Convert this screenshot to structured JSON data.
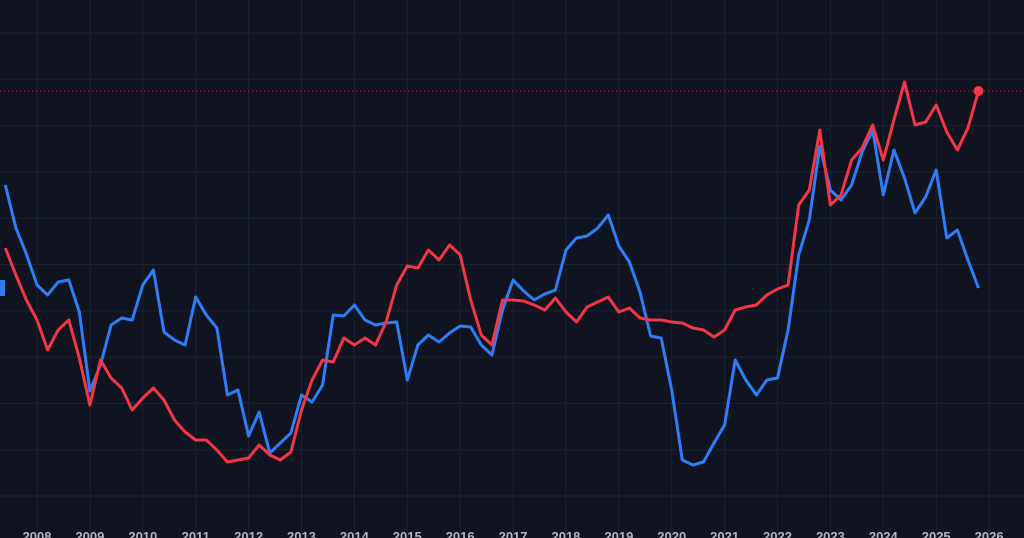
{
  "chart_data": {
    "type": "line",
    "x": [
      2007.4,
      2007.6,
      2007.8,
      2008.0,
      2008.2,
      2008.4,
      2008.6,
      2008.8,
      2009.0,
      2009.2,
      2009.4,
      2009.6,
      2009.8,
      2010.0,
      2010.2,
      2010.4,
      2010.6,
      2010.8,
      2011.0,
      2011.2,
      2011.4,
      2011.6,
      2011.8,
      2012.0,
      2012.2,
      2012.4,
      2012.6,
      2012.8,
      2013.0,
      2013.2,
      2013.4,
      2013.6,
      2013.8,
      2014.0,
      2014.2,
      2014.4,
      2014.6,
      2014.8,
      2015.0,
      2015.2,
      2015.4,
      2015.6,
      2015.8,
      2016.0,
      2016.2,
      2016.4,
      2016.6,
      2016.8,
      2017.0,
      2017.2,
      2017.4,
      2017.6,
      2017.8,
      2018.0,
      2018.2,
      2018.4,
      2018.6,
      2018.8,
      2019.0,
      2019.2,
      2019.4,
      2019.6,
      2019.8,
      2020.0,
      2020.2,
      2020.4,
      2020.6,
      2020.8,
      2021.0,
      2021.2,
      2021.4,
      2021.6,
      2021.8,
      2022.0,
      2022.2,
      2022.4,
      2022.6,
      2022.8,
      2023.0,
      2023.2,
      2023.4,
      2023.6,
      2023.8,
      2024.0,
      2024.2,
      2024.4,
      2024.6,
      2024.8,
      2025.0,
      2025.2,
      2025.4,
      2025.6,
      2025.8
    ],
    "series": [
      {
        "color": "#2f7df6",
        "values": [
          353,
          310,
          284,
          253,
          243,
          256,
          258,
          226,
          147,
          173,
          213,
          220,
          218,
          253,
          268,
          206,
          198,
          193,
          241,
          223,
          210,
          143,
          148,
          102,
          126,
          85,
          95,
          105,
          143,
          136,
          153,
          223,
          222,
          233,
          218,
          213,
          215,
          216,
          158,
          193,
          203,
          196,
          205,
          212,
          211,
          193,
          183,
          228,
          258,
          247,
          238,
          244,
          248,
          288,
          300,
          302,
          310,
          323,
          292,
          276,
          246,
          202,
          200,
          148,
          78,
          73,
          76,
          95,
          113,
          178,
          158,
          143,
          158,
          160,
          208,
          283,
          318,
          392,
          348,
          338,
          353,
          386,
          408,
          343,
          388,
          360,
          325,
          341,
          368,
          300,
          308,
          278,
          250
        ]
      },
      {
        "color": "#f23645",
        "values": [
          290,
          263,
          238,
          218,
          188,
          208,
          218,
          180,
          133,
          178,
          160,
          150,
          128,
          140,
          150,
          138,
          118,
          106,
          98,
          98,
          88,
          76,
          78,
          80,
          93,
          83,
          78,
          86,
          128,
          158,
          178,
          176,
          200,
          193,
          200,
          193,
          216,
          253,
          272,
          270,
          288,
          278,
          293,
          283,
          238,
          203,
          193,
          238,
          238,
          237,
          233,
          228,
          240,
          226,
          216,
          231,
          236,
          241,
          226,
          230,
          220,
          218,
          218,
          216,
          215,
          210,
          208,
          201,
          208,
          228,
          231,
          233,
          243,
          249,
          253,
          333,
          348,
          408,
          333,
          343,
          378,
          390,
          413,
          378,
          418,
          456,
          413,
          416,
          433,
          406,
          388,
          410,
          447
        ]
      }
    ],
    "xlim": [
      2007.3,
      2026.66
    ],
    "xticks": [
      2008,
      2009,
      2010,
      2011,
      2012,
      2013,
      2014,
      2015,
      2016,
      2017,
      2018,
      2019,
      2020,
      2021,
      2022,
      2023,
      2024,
      2025,
      2026
    ],
    "ylim": [
      0,
      538
    ],
    "grid": true
  }
}
